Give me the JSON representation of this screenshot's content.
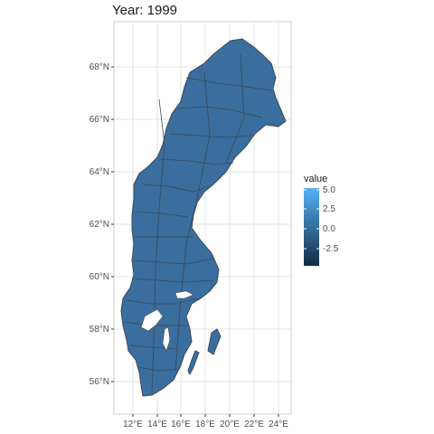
{
  "map": {
    "title": "Year: 1999",
    "x_ticks": [
      "12°E",
      "14°E",
      "16°E",
      "18°E",
      "20°E",
      "22°E",
      "24°E"
    ],
    "y_ticks": [
      "56°N",
      "58°N",
      "60°N",
      "62°N",
      "64°N",
      "66°N",
      "68°N"
    ],
    "region_fill": "#3a6e9e",
    "border_color": "#3c4a58"
  },
  "legend": {
    "title": "value",
    "labels": [
      "5.0",
      "2.5",
      "0.0",
      "-2.5"
    ],
    "color_high": "#56b1f7",
    "color_low": "#132b43"
  }
}
